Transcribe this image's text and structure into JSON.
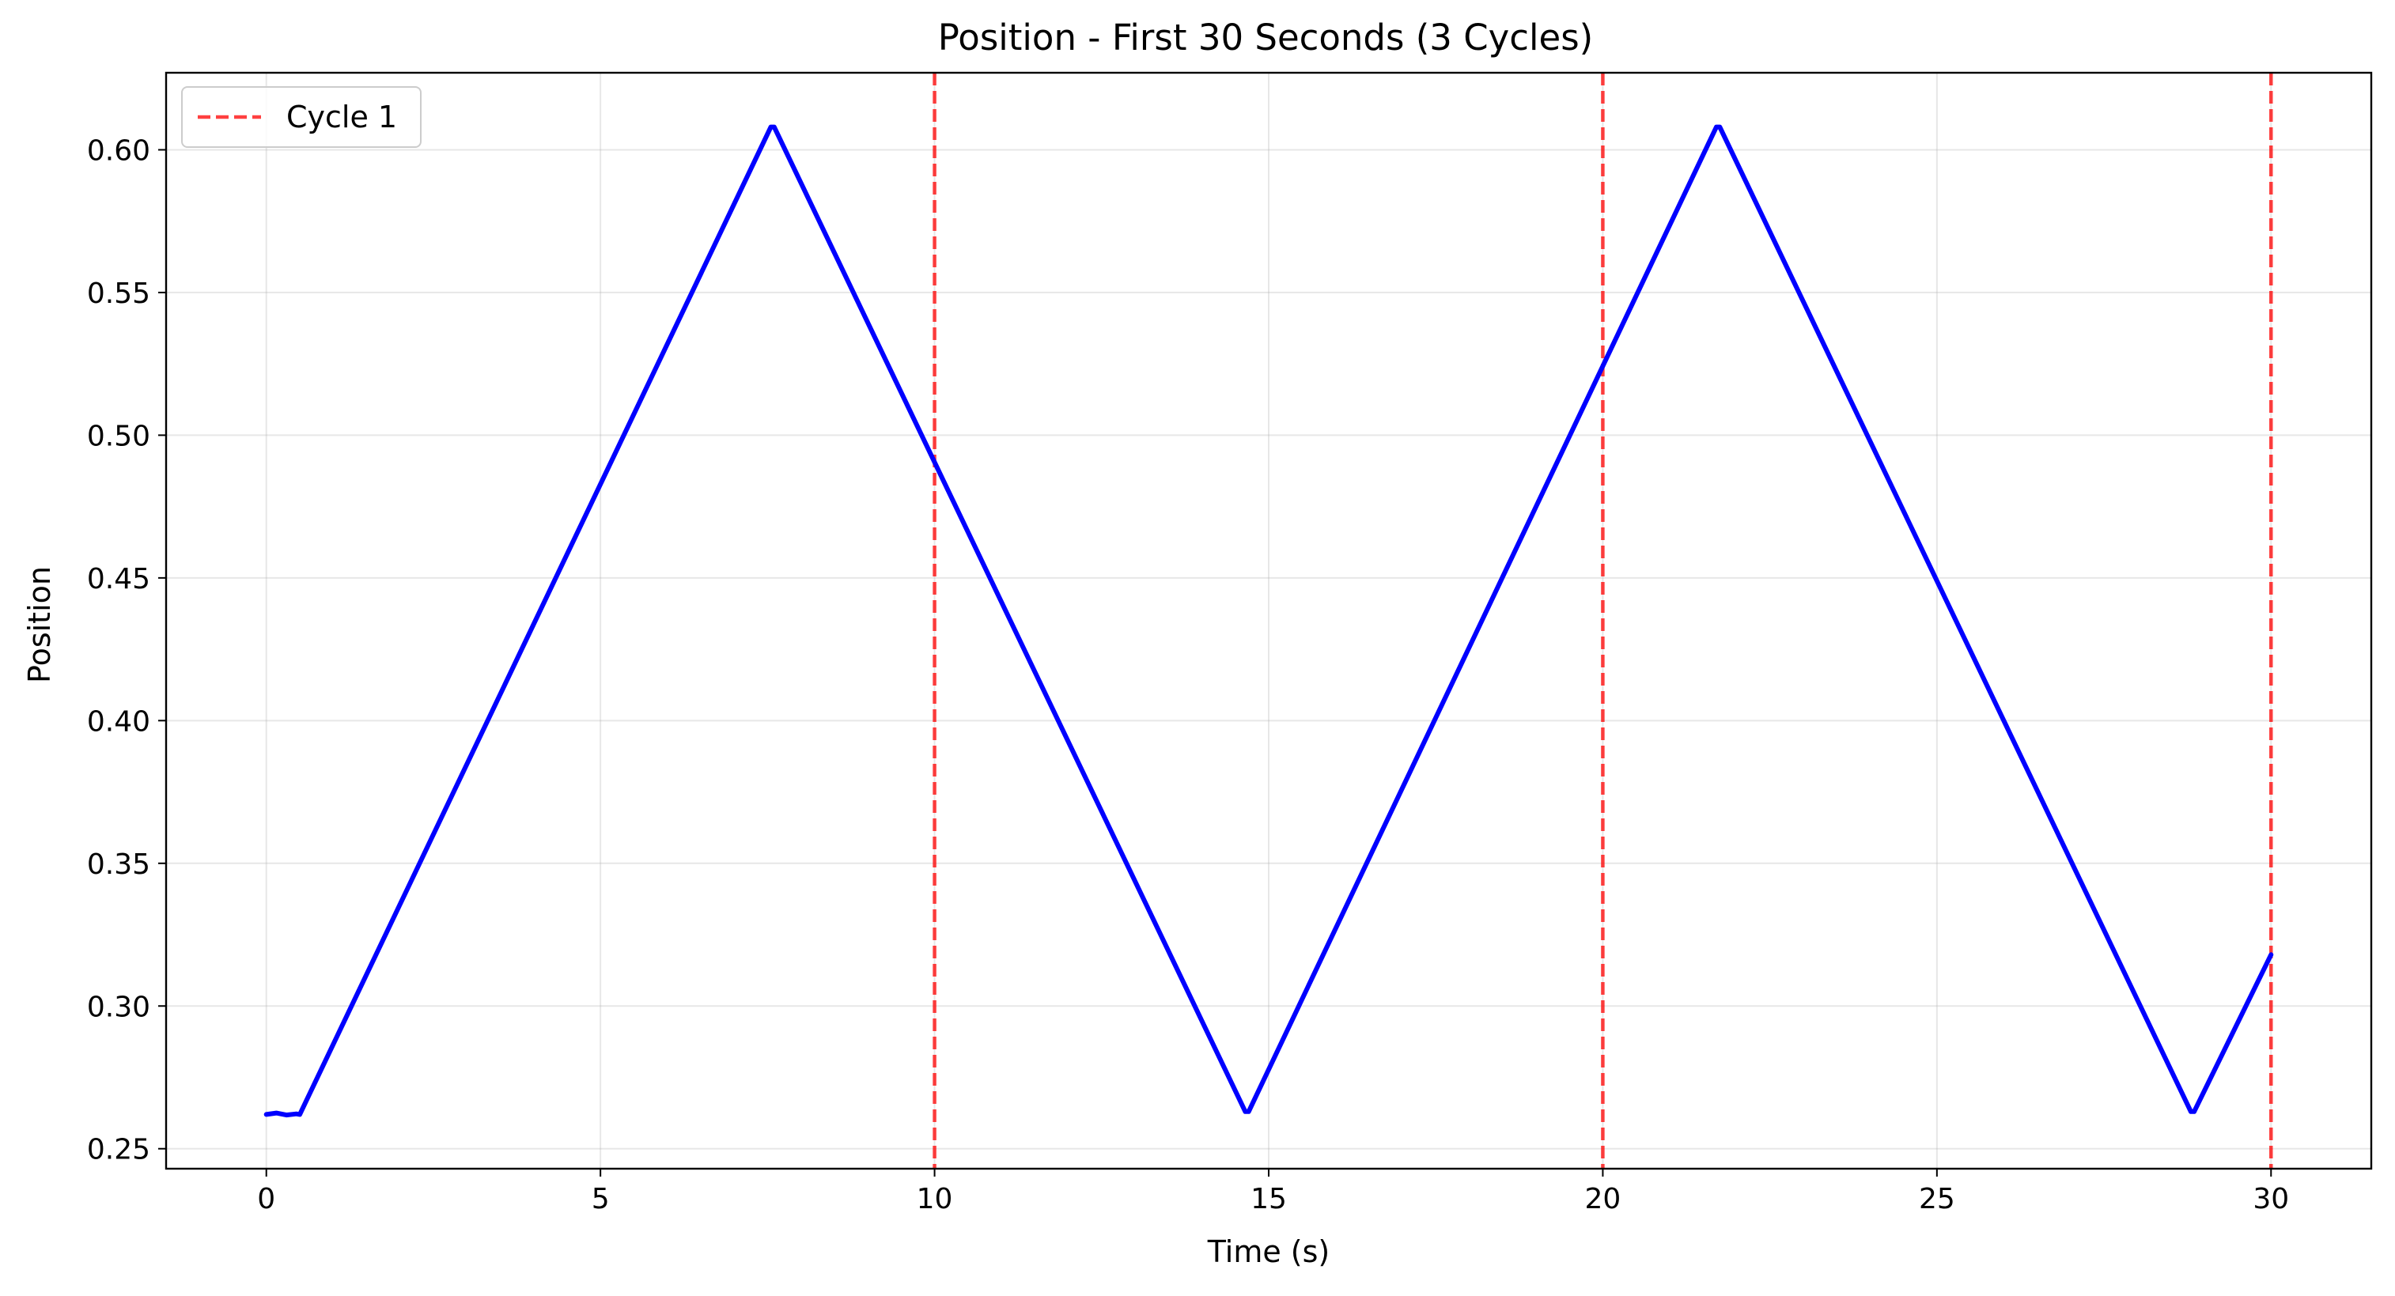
{
  "chart_data": {
    "type": "line",
    "title": "Position - First 30 Seconds (3 Cycles)",
    "xlabel": "Time (s)",
    "ylabel": "Position",
    "xlim": [
      -1.5,
      31.5
    ],
    "ylim": [
      0.243,
      0.627
    ],
    "xticks": [
      0,
      5,
      10,
      15,
      20,
      25,
      30
    ],
    "xtick_labels": [
      "0",
      "5",
      "10",
      "15",
      "20",
      "25",
      "30"
    ],
    "yticks": [
      0.25,
      0.3,
      0.35,
      0.4,
      0.45,
      0.5,
      0.55,
      0.6
    ],
    "ytick_labels": [
      "0.25",
      "0.30",
      "0.35",
      "0.40",
      "0.45",
      "0.50",
      "0.55",
      "0.60"
    ],
    "grid": true,
    "legend_position": "top-left",
    "series": [
      {
        "name": "",
        "color": "#0000ff",
        "x": [
          0.0,
          0.15,
          0.3,
          0.45,
          0.5,
          7.55,
          7.6,
          14.65,
          14.7,
          21.7,
          21.75,
          28.8,
          28.85,
          30.0
        ],
        "y": [
          0.262,
          0.2625,
          0.2618,
          0.2622,
          0.262,
          0.608,
          0.608,
          0.263,
          0.263,
          0.608,
          0.608,
          0.263,
          0.263,
          0.318
        ]
      }
    ],
    "vlines": [
      {
        "x": 10,
        "name": "Cycle 1",
        "color": "#ff0000",
        "style": "dashed"
      },
      {
        "x": 20,
        "name": "",
        "color": "#ff0000",
        "style": "dashed"
      },
      {
        "x": 30,
        "name": "",
        "color": "#ff0000",
        "style": "dashed"
      }
    ],
    "legend": [
      {
        "label": "Cycle 1",
        "color": "#ff0000",
        "style": "dashed"
      }
    ]
  }
}
